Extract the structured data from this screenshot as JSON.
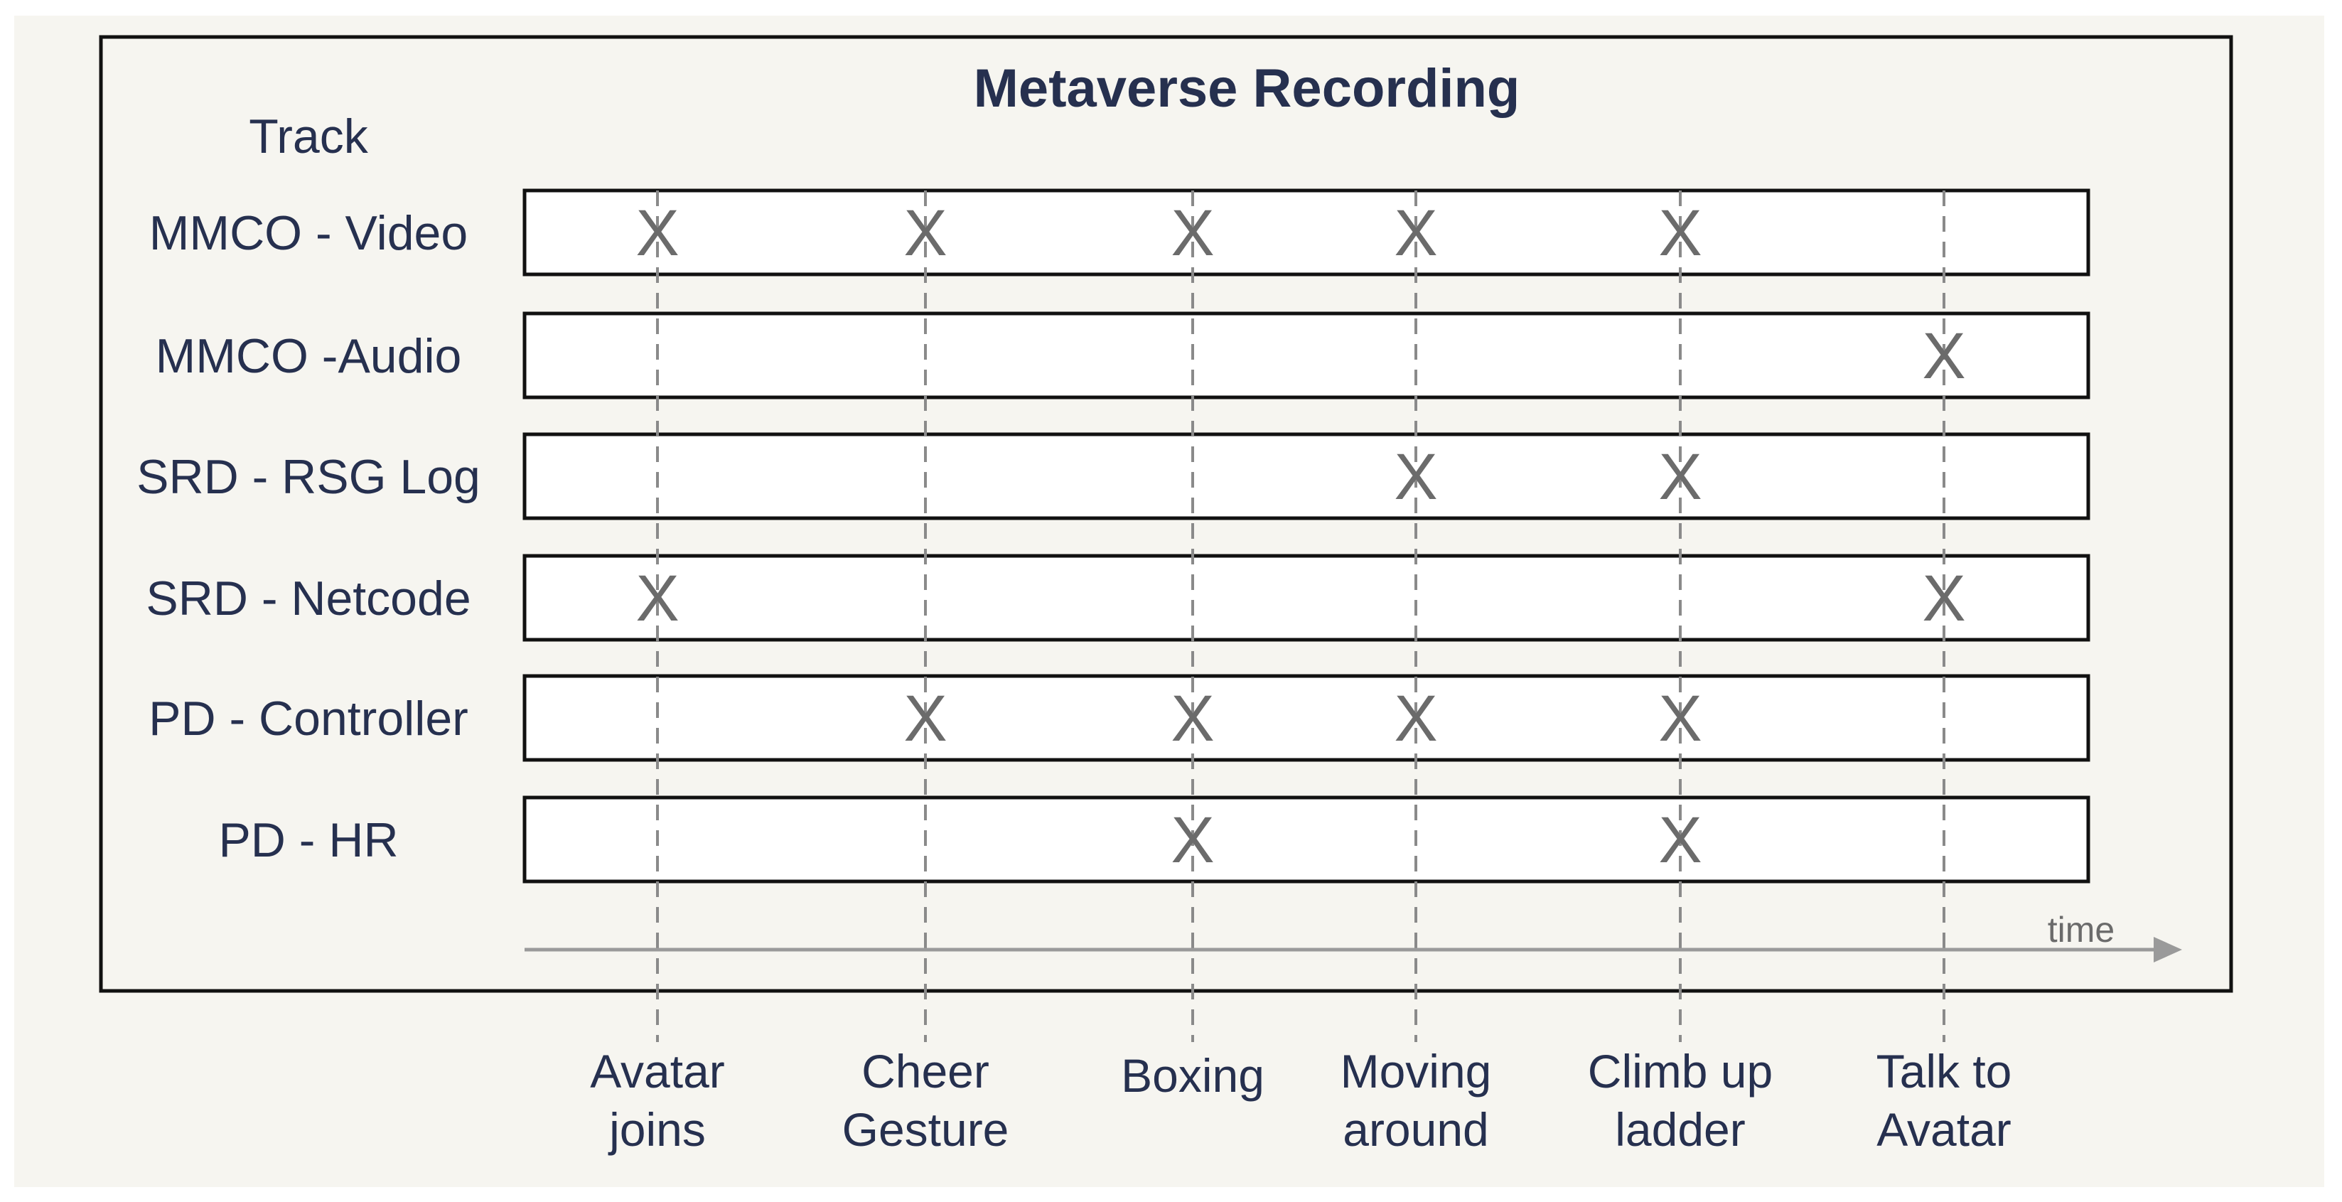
{
  "title": "Metaverse Recording",
  "track_header": "Track",
  "time_label": "time",
  "mark_symbol": "X",
  "tracks": [
    {
      "label": "MMCO - Video",
      "events": [
        0,
        1,
        2,
        3,
        4
      ]
    },
    {
      "label": "MMCO -Audio",
      "events": [
        5
      ]
    },
    {
      "label": "SRD - RSG Log",
      "events": [
        3,
        4
      ]
    },
    {
      "label": "SRD - Netcode",
      "events": [
        0,
        5
      ]
    },
    {
      "label": "PD - Controller",
      "events": [
        1,
        2,
        3,
        4
      ]
    },
    {
      "label": "PD - HR",
      "events": [
        2,
        4
      ]
    }
  ],
  "events": [
    {
      "line1": "Avatar",
      "line2": "joins"
    },
    {
      "line1": "Cheer",
      "line2": "Gesture"
    },
    {
      "line1": "Boxing",
      "line2": ""
    },
    {
      "line1": "Moving",
      "line2": "around"
    },
    {
      "line1": "Climb up",
      "line2": "ladder"
    },
    {
      "line1": "Talk to",
      "line2": "Avatar"
    }
  ],
  "colors": {
    "page_bg": "#f6f5f0",
    "frame": "#111111",
    "text": "#26304f",
    "mark": "#6b6b6b",
    "guide": "#8a8a8a",
    "arrow": "#9a9a9a",
    "track_fill": "#ffffff"
  }
}
